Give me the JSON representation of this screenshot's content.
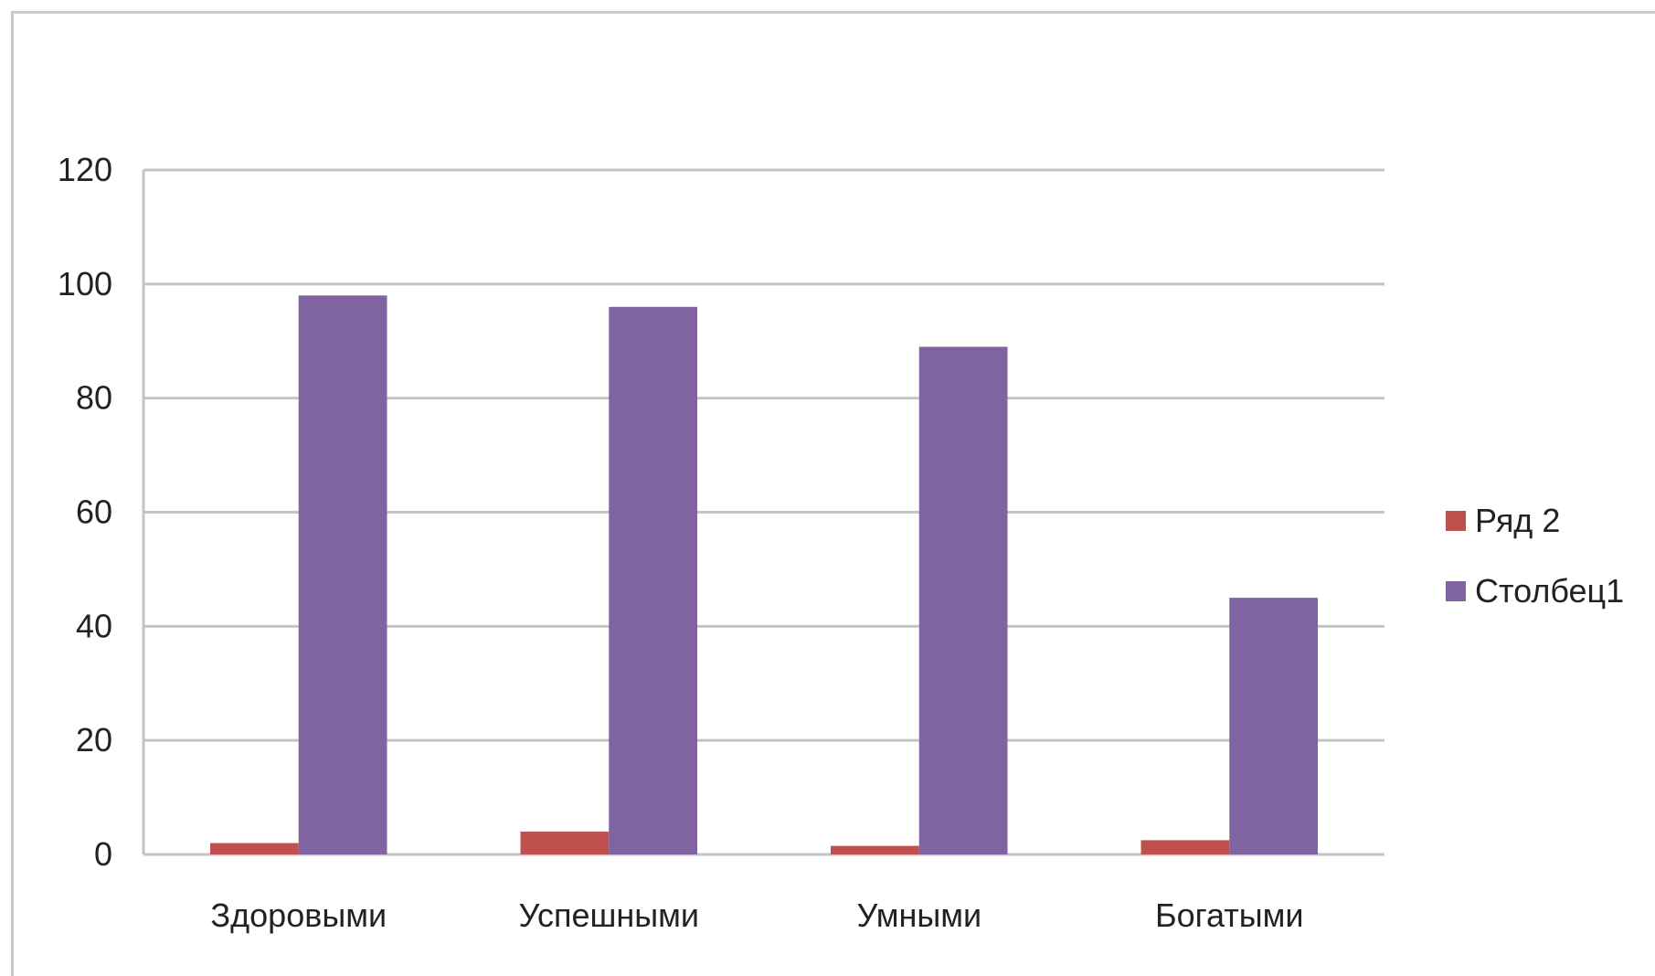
{
  "chart_data": {
    "type": "bar",
    "categories": [
      "Здоровыми",
      "Успешными",
      "Умными",
      "Богатыми"
    ],
    "series": [
      {
        "name": "Ряд 2",
        "values": [
          2,
          4,
          1.5,
          2.5
        ],
        "color": "#C0504D"
      },
      {
        "name": "Столбец1",
        "values": [
          98,
          96,
          89,
          45
        ],
        "color": "#8064A2"
      }
    ],
    "ylim": [
      0,
      120
    ],
    "yticks": [
      0,
      20,
      40,
      60,
      80,
      100,
      120
    ],
    "grid": true,
    "legend_position": "right",
    "title": "",
    "xlabel": "",
    "ylabel": ""
  }
}
